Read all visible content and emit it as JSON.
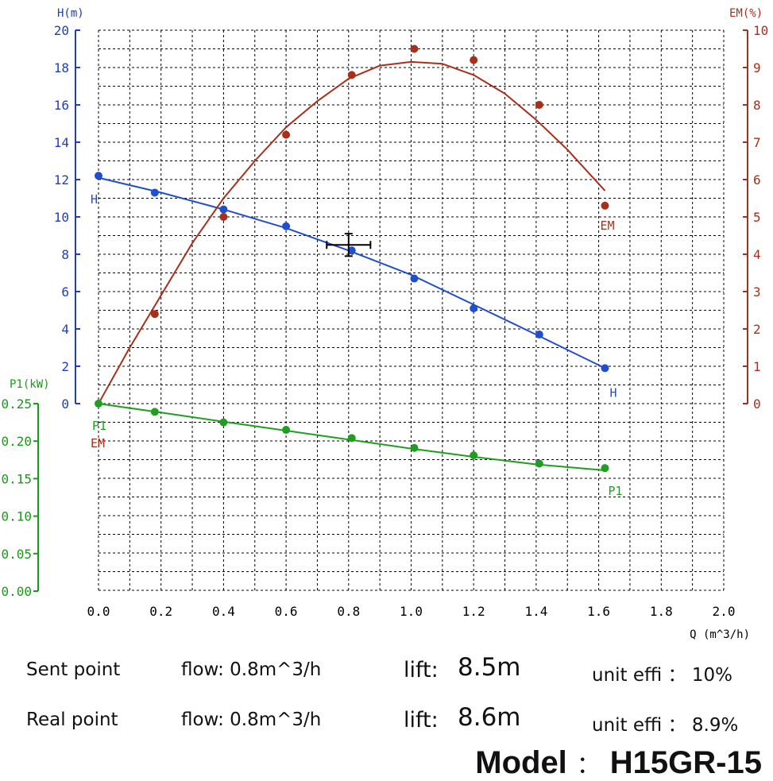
{
  "chart_data": {
    "type": "line",
    "x_axis": {
      "label": "Q (m^3/h)",
      "min": 0,
      "max": 2.0,
      "ticks": [
        "0.0",
        "0.2",
        "0.4",
        "0.6",
        "0.8",
        "1.0",
        "1.2",
        "1.4",
        "1.6",
        "1.8",
        "2.0"
      ]
    },
    "y_axes": {
      "H": {
        "label": "H(m)",
        "min": 0,
        "max": 20,
        "ticks": [
          "0",
          "2",
          "4",
          "6",
          "8",
          "10",
          "12",
          "14",
          "16",
          "18",
          "20"
        ],
        "color": "#1f3fbf"
      },
      "EM": {
        "label": "EM(%)",
        "min": 0,
        "max": 10,
        "ticks": [
          "0",
          "1",
          "2",
          "3",
          "4",
          "5",
          "6",
          "7",
          "8",
          "9",
          "10"
        ],
        "color": "#a8301a"
      },
      "P1": {
        "label": "P1(kW)",
        "min": 0,
        "max": 0.25,
        "ticks": [
          "0.00",
          "0.05",
          "0.10",
          "0.15",
          "0.20",
          "0.25"
        ],
        "color": "#1a9a1a"
      }
    },
    "grid": true,
    "series": [
      {
        "name": "H",
        "axis": "H",
        "color": "#1f4fcf",
        "end_label": "H",
        "points": [
          [
            0.0,
            12.2
          ],
          [
            0.18,
            11.3
          ],
          [
            0.4,
            10.4
          ],
          [
            0.6,
            9.5
          ],
          [
            0.81,
            8.2
          ],
          [
            1.01,
            6.7
          ],
          [
            1.2,
            5.1
          ],
          [
            1.41,
            3.7
          ],
          [
            1.62,
            1.9
          ]
        ],
        "curve": [
          [
            0.0,
            12.1
          ],
          [
            0.2,
            11.3
          ],
          [
            0.4,
            10.4
          ],
          [
            0.6,
            9.4
          ],
          [
            0.8,
            8.2
          ],
          [
            1.0,
            6.9
          ],
          [
            1.2,
            5.3
          ],
          [
            1.4,
            3.7
          ],
          [
            1.62,
            1.9
          ]
        ]
      },
      {
        "name": "EM",
        "axis": "EM",
        "color": "#a8301a",
        "end_label": "EM",
        "points": [
          [
            0.18,
            2.4
          ],
          [
            0.4,
            5.0
          ],
          [
            0.6,
            7.2
          ],
          [
            0.81,
            8.8
          ],
          [
            1.01,
            9.5
          ],
          [
            1.2,
            9.2
          ],
          [
            1.41,
            8.0
          ],
          [
            1.62,
            5.3
          ]
        ],
        "curve": [
          [
            0.0,
            0.0
          ],
          [
            0.1,
            1.5
          ],
          [
            0.2,
            2.9
          ],
          [
            0.3,
            4.3
          ],
          [
            0.4,
            5.5
          ],
          [
            0.5,
            6.5
          ],
          [
            0.6,
            7.4
          ],
          [
            0.7,
            8.1
          ],
          [
            0.8,
            8.7
          ],
          [
            0.9,
            9.05
          ],
          [
            1.0,
            9.15
          ],
          [
            1.1,
            9.1
          ],
          [
            1.2,
            8.8
          ],
          [
            1.3,
            8.3
          ],
          [
            1.4,
            7.6
          ],
          [
            1.5,
            6.8
          ],
          [
            1.62,
            5.7
          ]
        ]
      },
      {
        "name": "P1",
        "axis": "P1",
        "color": "#1f9f1f",
        "end_label": "P1",
        "points": [
          [
            0.0,
            0.25
          ],
          [
            0.18,
            0.239
          ],
          [
            0.4,
            0.225
          ],
          [
            0.6,
            0.215
          ],
          [
            0.81,
            0.204
          ],
          [
            1.01,
            0.191
          ],
          [
            1.2,
            0.181
          ],
          [
            1.41,
            0.17
          ],
          [
            1.62,
            0.164
          ]
        ],
        "curve": [
          [
            0.0,
            0.25
          ],
          [
            0.2,
            0.238
          ],
          [
            0.4,
            0.226
          ],
          [
            0.6,
            0.214
          ],
          [
            0.8,
            0.202
          ],
          [
            1.0,
            0.19
          ],
          [
            1.2,
            0.179
          ],
          [
            1.4,
            0.169
          ],
          [
            1.62,
            0.161
          ]
        ]
      }
    ],
    "start_labels": [
      "P1",
      "EM"
    ],
    "marker": {
      "q": 0.8,
      "h": 8.5,
      "q_err": 0.07,
      "h_err": 0.6
    }
  },
  "info": {
    "sent": {
      "label": "Sent point",
      "flow": "flow: 0.8m^3/h",
      "lift_label": "lift:",
      "lift_value": "8.5m",
      "effi": "unit effi ： 10%"
    },
    "real": {
      "label": "Real point",
      "flow": "flow: 0.8m^3/h",
      "lift_label": "lift:",
      "lift_value": "8.6m",
      "effi": "unit effi ： 8.9%"
    },
    "model_label": "Model",
    "model_sep": "：",
    "model_value": "H15GR-15"
  }
}
